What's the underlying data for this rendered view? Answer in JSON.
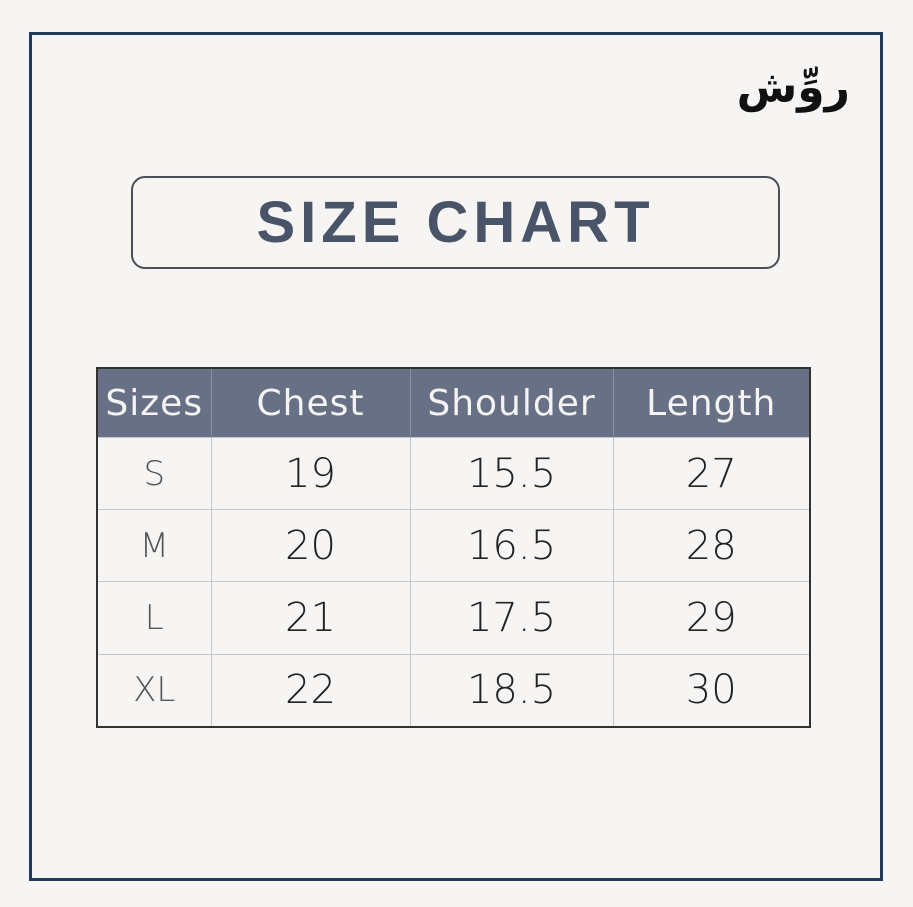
{
  "logo_text": "روِّش",
  "title": "SIZE CHART",
  "table": {
    "headers": [
      "Sizes",
      "Chest",
      "Shoulder",
      "Length"
    ],
    "rows": [
      [
        "S",
        "19",
        "15.5",
        "27"
      ],
      [
        "M",
        "20",
        "16.5",
        "28"
      ],
      [
        "L",
        "21",
        "17.5",
        "29"
      ],
      [
        "XL",
        "22",
        "18.5",
        "30"
      ]
    ]
  },
  "colors": {
    "frame": "#1f3a5a",
    "header_bg": "#677084",
    "title": "#4a5469"
  }
}
